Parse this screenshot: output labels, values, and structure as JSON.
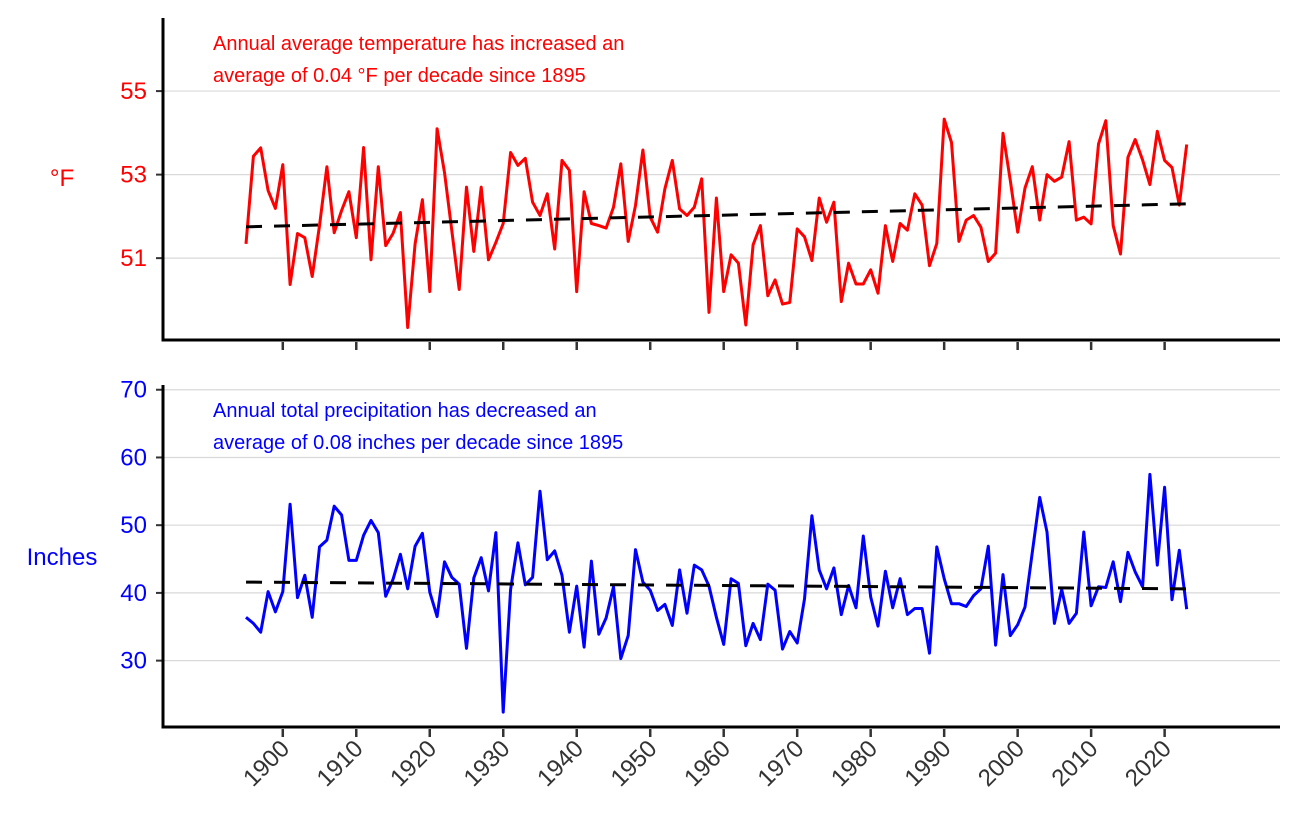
{
  "chart_data": [
    {
      "type": "line",
      "annotation": [
        "Annual average temperature has increased an",
        "average of 0.04 °F per decade since 1895"
      ],
      "ylabel": "°F",
      "color": "#ff0000",
      "trend_color": "#000000",
      "ylim": [
        49.04,
        56.75
      ],
      "yticks": [
        51,
        53,
        55
      ],
      "grid": true,
      "x_start": 1895,
      "values": [
        51.34,
        53.44,
        53.64,
        52.62,
        52.19,
        53.24,
        50.37,
        51.59,
        51.49,
        50.56,
        51.78,
        53.19,
        51.61,
        52.14,
        52.59,
        51.49,
        53.65,
        50.96,
        53.19,
        51.3,
        51.59,
        52.09,
        49.34,
        51.34,
        52.4,
        50.2,
        54.1,
        53.05,
        51.66,
        50.25,
        52.7,
        51.16,
        52.7,
        50.96,
        51.38,
        51.83,
        53.53,
        53.22,
        53.39,
        52.34,
        52.02,
        52.54,
        51.22,
        53.34,
        53.1,
        50.2,
        52.59,
        51.83,
        51.78,
        51.72,
        52.22,
        53.26,
        51.4,
        52.26,
        53.59,
        51.98,
        51.62,
        52.66,
        53.34,
        52.18,
        52.02,
        52.22,
        52.9,
        49.7,
        52.44,
        50.2,
        51.08,
        50.88,
        49.4,
        51.32,
        51.78,
        50.1,
        50.48,
        49.9,
        49.94,
        51.7,
        51.51,
        50.94,
        52.44,
        51.86,
        52.34,
        49.96,
        50.88,
        50.38,
        50.38,
        50.72,
        50.16,
        51.78,
        50.92,
        51.83,
        51.67,
        52.54,
        52.27,
        50.82,
        51.35,
        54.33,
        53.77,
        51.4,
        51.91,
        52.02,
        51.74,
        50.92,
        51.12,
        53.99,
        52.86,
        51.62,
        52.68,
        53.19,
        51.91,
        53.0,
        52.84,
        52.94,
        53.79,
        51.91,
        51.98,
        51.82,
        53.73,
        54.29,
        51.78,
        51.1,
        53.41,
        53.84,
        53.35,
        52.76,
        54.04,
        53.34,
        53.17,
        52.27,
        53.72
      ],
      "trend": {
        "x": [
          1895,
          2023
        ],
        "y": [
          51.75,
          52.3
        ]
      }
    },
    {
      "type": "line",
      "annotation": [
        "Annual total precipitation has decreased an",
        "average of 0.08 inches per decade since 1895"
      ],
      "ylabel": "Inches",
      "color": "#0000ff",
      "trend_color": "#000000",
      "ylim": [
        20.2,
        70.7
      ],
      "yticks": [
        30,
        40,
        50,
        60,
        70
      ],
      "grid": true,
      "x_start": 1895,
      "values": [
        36.4,
        35.5,
        34.2,
        40.2,
        37.2,
        40.2,
        53.1,
        39.3,
        42.6,
        36.4,
        46.8,
        47.8,
        52.8,
        51.5,
        44.8,
        44.8,
        48.5,
        50.7,
        48.9,
        39.5,
        42.0,
        45.7,
        40.6,
        46.9,
        48.8,
        40.1,
        36.5,
        44.6,
        42.3,
        41.3,
        31.8,
        42.2,
        45.2,
        40.3,
        48.9,
        22.4,
        40.5,
        47.4,
        41.2,
        42.3,
        55.0,
        44.9,
        46.2,
        42.6,
        34.2,
        41.0,
        32.0,
        44.7,
        33.9,
        36.3,
        40.9,
        30.3,
        33.7,
        46.4,
        41.6,
        40.4,
        37.4,
        38.3,
        35.2,
        43.4,
        37.0,
        44.1,
        43.4,
        41.0,
        36.4,
        32.4,
        42.1,
        41.4,
        32.2,
        35.5,
        33.1,
        41.3,
        40.4,
        31.7,
        34.3,
        32.6,
        39.1,
        51.4,
        43.4,
        40.6,
        43.7,
        36.8,
        41.1,
        37.8,
        48.4,
        39.4,
        35.1,
        43.2,
        37.8,
        42.1,
        36.8,
        37.7,
        37.7,
        31.1,
        46.8,
        42.1,
        38.4,
        38.4,
        38.0,
        39.6,
        40.6,
        46.9,
        32.3,
        42.7,
        33.7,
        35.3,
        37.9,
        46.0,
        54.1,
        49.0,
        35.5,
        40.5,
        35.5,
        37.0,
        49.0,
        38.1,
        40.9,
        40.8,
        44.6,
        38.7,
        46.0,
        43.1,
        40.9,
        57.5,
        44.1,
        55.6,
        39.0,
        46.3,
        37.6
      ],
      "trend": {
        "x": [
          1895,
          2023
        ],
        "y": [
          41.6,
          40.6
        ]
      }
    }
  ],
  "x_axis": {
    "xlim": [
      1883.7,
      2035.7
    ],
    "ticks": [
      "1900",
      "1910",
      "1920",
      "1930",
      "1940",
      "1950",
      "1960",
      "1970",
      "1980",
      "1990",
      "2000",
      "2010",
      "2020"
    ],
    "tick_color": "#333333"
  }
}
